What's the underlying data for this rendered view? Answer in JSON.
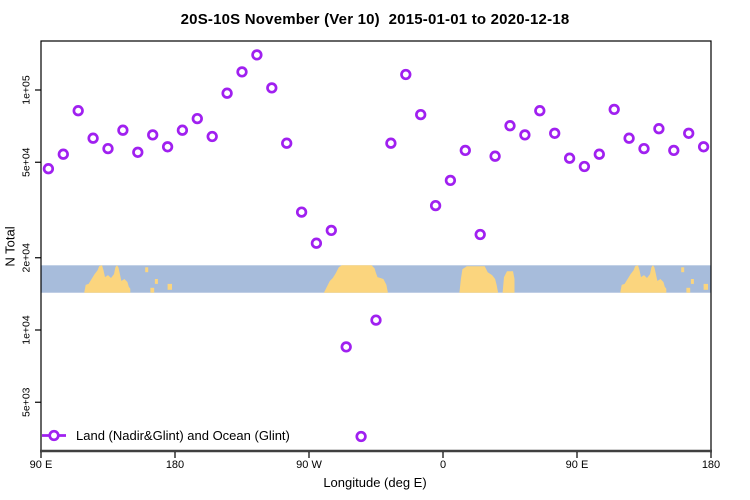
{
  "title": "20S-10S November (Ver 10)  2015-01-01 to 2020-12-18",
  "legend": {
    "label": "Land (Nadir&Glint) and Ocean (Glint)",
    "marker": "open-circle-with-line"
  },
  "colors": {
    "marker": "#A020F0",
    "ocean": "#A7BCDB",
    "land": "#FBD57E",
    "axis": "#000000",
    "axis_baseline": "#404040",
    "background": "#FFFFFF"
  },
  "chart_data": {
    "type": "scatter",
    "title": "20S-10S November (Ver 10)  2015-01-01 to 2020-12-18",
    "xlabel": "Longitude (deg E)",
    "ylabel": "N Total",
    "x_axis": {
      "range_deg": [
        90,
        540
      ],
      "note": "longitude axis starts at 90E and wraps eastward through 180, 90W, 0, 90E to 180",
      "ticks": [
        {
          "deg": 90,
          "label": "90 E"
        },
        {
          "deg": 180,
          "label": "180"
        },
        {
          "deg": 270,
          "label": "90 W"
        },
        {
          "deg": 360,
          "label": "0"
        },
        {
          "deg": 450,
          "label": "90 E"
        },
        {
          "deg": 540,
          "label": "180"
        }
      ]
    },
    "y_axis": {
      "scale": "log",
      "range": [
        3100,
        160000
      ],
      "ticks": [
        {
          "value": 100000,
          "label": "1e+05"
        },
        {
          "value": 50000,
          "label": "5e+04"
        },
        {
          "value": 20000,
          "label": "2e+04"
        },
        {
          "value": 10000,
          "label": "1e+04"
        },
        {
          "value": 5000,
          "label": "5e+03"
        }
      ]
    },
    "series": [
      {
        "name": "Land (Nadir&Glint) and Ocean (Glint)",
        "marker": "open-circle",
        "points": [
          {
            "lon": 95,
            "n": 47000
          },
          {
            "lon": 105,
            "n": 54000
          },
          {
            "lon": 115,
            "n": 82000
          },
          {
            "lon": 125,
            "n": 63000
          },
          {
            "lon": 135,
            "n": 57000
          },
          {
            "lon": 145,
            "n": 68000
          },
          {
            "lon": 155,
            "n": 55000
          },
          {
            "lon": 165,
            "n": 65000
          },
          {
            "lon": 175,
            "n": 58000
          },
          {
            "lon": 185,
            "n": 68000
          },
          {
            "lon": 195,
            "n": 76000
          },
          {
            "lon": 205,
            "n": 64000
          },
          {
            "lon": 215,
            "n": 97000
          },
          {
            "lon": 225,
            "n": 119000
          },
          {
            "lon": 235,
            "n": 140000
          },
          {
            "lon": 245,
            "n": 102000
          },
          {
            "lon": 255,
            "n": 60000
          },
          {
            "lon": 265,
            "n": 31000
          },
          {
            "lon": 275,
            "n": 23000
          },
          {
            "lon": 285,
            "n": 26000
          },
          {
            "lon": 295,
            "n": 8500
          },
          {
            "lon": 305,
            "n": 3600
          },
          {
            "lon": 315,
            "n": 11000
          },
          {
            "lon": 325,
            "n": 60000
          },
          {
            "lon": 335,
            "n": 116000
          },
          {
            "lon": 345,
            "n": 79000
          },
          {
            "lon": 355,
            "n": 33000
          },
          {
            "lon": 365,
            "n": 42000
          },
          {
            "lon": 375,
            "n": 56000
          },
          {
            "lon": 385,
            "n": 25000
          },
          {
            "lon": 395,
            "n": 53000
          },
          {
            "lon": 405,
            "n": 71000
          },
          {
            "lon": 415,
            "n": 65000
          },
          {
            "lon": 425,
            "n": 82000
          },
          {
            "lon": 435,
            "n": 66000
          },
          {
            "lon": 445,
            "n": 52000
          },
          {
            "lon": 455,
            "n": 48000
          },
          {
            "lon": 465,
            "n": 54000
          },
          {
            "lon": 475,
            "n": 83000
          },
          {
            "lon": 485,
            "n": 63000
          },
          {
            "lon": 495,
            "n": 57000
          },
          {
            "lon": 505,
            "n": 69000
          },
          {
            "lon": 515,
            "n": 56000
          },
          {
            "lon": 525,
            "n": 66000
          },
          {
            "lon": 535,
            "n": 58000
          }
        ]
      }
    ],
    "map_band": {
      "description": "coastline strip of the 20S-10S latitude band drawn across the plot",
      "top_value": 18600,
      "bottom_value": 14300,
      "depth_units": "0 = 10S (band top) to 28 = 20S (band bottom)",
      "lands": [
        {
          "name": "australia",
          "repeat_plus_360": true,
          "points": [
            [
              119,
              28
            ],
            [
              120,
              20
            ],
            [
              122,
              19
            ],
            [
              124,
              14
            ],
            [
              126,
              9
            ],
            [
              128,
              5
            ],
            [
              129,
              1
            ],
            [
              131,
              0
            ],
            [
              132,
              5
            ],
            [
              133,
              12
            ],
            [
              135,
              10
            ],
            [
              137,
              13
            ],
            [
              139,
              9
            ],
            [
              140,
              2
            ],
            [
              141,
              0
            ],
            [
              142,
              2
            ],
            [
              143,
              9
            ],
            [
              144,
              16
            ],
            [
              146,
              14
            ],
            [
              148,
              17
            ],
            [
              149,
              22
            ],
            [
              150,
              24
            ],
            [
              150,
              28
            ]
          ]
        },
        {
          "name": "solomon-islands",
          "repeat_plus_360": true,
          "points": [
            [
              160,
              2
            ],
            [
              162,
              2
            ],
            [
              162,
              7
            ],
            [
              160,
              7
            ]
          ]
        },
        {
          "name": "vanuatu",
          "repeat_plus_360": true,
          "points": [
            [
              166.5,
              14
            ],
            [
              168.5,
              14
            ],
            [
              168.5,
              19
            ],
            [
              166.5,
              19
            ]
          ]
        },
        {
          "name": "new-caledonia",
          "repeat_plus_360": true,
          "points": [
            [
              163.5,
              23
            ],
            [
              166,
              23
            ],
            [
              166,
              28
            ],
            [
              163.5,
              28
            ]
          ]
        },
        {
          "name": "fiji",
          "repeat_plus_360": true,
          "points": [
            [
              175,
              19
            ],
            [
              178,
              19
            ],
            [
              178,
              25
            ],
            [
              175,
              25
            ]
          ]
        },
        {
          "name": "south-america",
          "repeat_plus_360": false,
          "points": [
            [
              280,
              28
            ],
            [
              282,
              22
            ],
            [
              284,
              16
            ],
            [
              286,
              13
            ],
            [
              288,
              8
            ],
            [
              290,
              2
            ],
            [
              292,
              0
            ],
            [
              312,
              0
            ],
            [
              314,
              3
            ],
            [
              315,
              8
            ],
            [
              316,
              12
            ],
            [
              320,
              14
            ],
            [
              322,
              20
            ],
            [
              323,
              28
            ]
          ]
        },
        {
          "name": "africa",
          "repeat_plus_360": false,
          "points": [
            [
              371,
              28
            ],
            [
              372,
              14
            ],
            [
              373,
              4
            ],
            [
              376,
              1
            ],
            [
              388,
              1
            ],
            [
              390,
              7
            ],
            [
              393,
              10
            ],
            [
              395,
              14
            ],
            [
              396,
              20
            ],
            [
              397,
              28
            ]
          ]
        },
        {
          "name": "madagascar",
          "repeat_plus_360": false,
          "points": [
            [
              400,
              28
            ],
            [
              401,
              12
            ],
            [
              403,
              6
            ],
            [
              407,
              6
            ],
            [
              408,
              14
            ],
            [
              408,
              28
            ]
          ]
        }
      ]
    }
  }
}
